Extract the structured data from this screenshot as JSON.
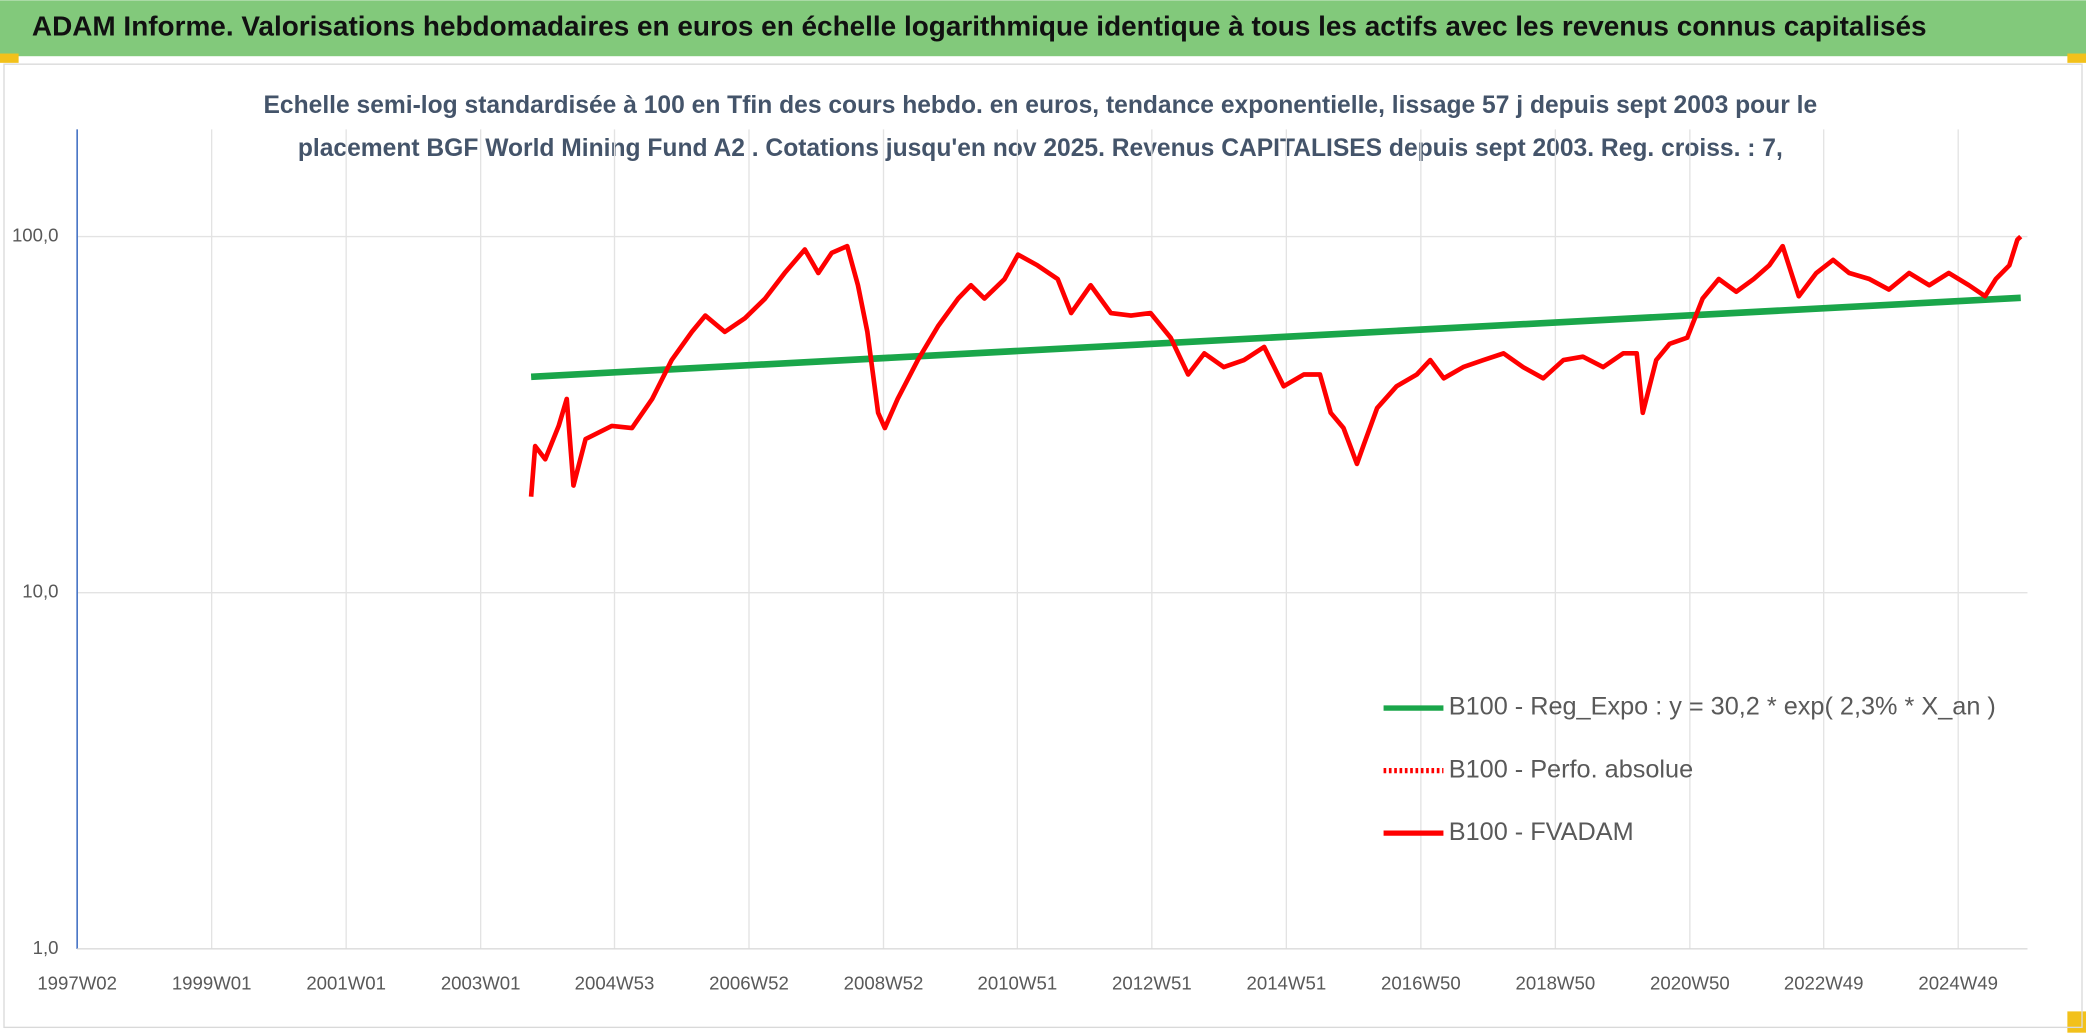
{
  "chart_data": {
    "type": "line",
    "title": "ADAM Informe. Valorisations hebdomadaires en euros en échelle logarithmique identique à tous les actifs avec les revenus connus capitalisés",
    "subtitle": [
      "Echelle semi-log standardisée à 100 en Tfin des cours hebdo. en euros, tendance exponentielle, lissage 57 j depuis sept 2003 pour le",
      "placement BGF World Mining Fund A2 . Cotations jusqu'en nov 2025. Revenus CAPITALISES depuis sept 2003. Reg. croiss. : 7,"
    ],
    "log_y": true,
    "grid": true,
    "ylim": [
      1,
      200
    ],
    "yticks": [
      {
        "value": 1,
        "label": "1,0"
      },
      {
        "value": 10,
        "label": "10,0"
      },
      {
        "value": 100,
        "label": "100,0"
      }
    ],
    "xlim": [
      1997.0,
      2026.0
    ],
    "xticks": [
      {
        "value": 1997.0,
        "label": "1997W02"
      },
      {
        "value": 1999.0,
        "label": "1999W01"
      },
      {
        "value": 2001.0,
        "label": "2001W01"
      },
      {
        "value": 2003.0,
        "label": "2003W01"
      },
      {
        "value": 2004.99,
        "label": "2004W53"
      },
      {
        "value": 2006.99,
        "label": "2006W52"
      },
      {
        "value": 2008.99,
        "label": "2008W52"
      },
      {
        "value": 2010.98,
        "label": "2010W51"
      },
      {
        "value": 2012.98,
        "label": "2012W51"
      },
      {
        "value": 2014.98,
        "label": "2014W51"
      },
      {
        "value": 2016.98,
        "label": "2016W50"
      },
      {
        "value": 2018.98,
        "label": "2018W50"
      },
      {
        "value": 2020.98,
        "label": "2020W50"
      },
      {
        "value": 2022.97,
        "label": "2022W49"
      },
      {
        "value": 2024.97,
        "label": "2024W49"
      }
    ],
    "series": [
      {
        "name": "B100 - Reg_Expo : y = 30,2 * exp( 2,3% *  X_an )",
        "color": "#1aa64a",
        "dash": "solid",
        "x": [
          2003.75,
          2025.9
        ],
        "values": [
          40.4,
          67.3
        ]
      },
      {
        "name": "B100 - Perfo. absolue",
        "color": "#ff0000",
        "dash": "dotted",
        "x": [],
        "values": []
      },
      {
        "name": "B100 - FVADAM",
        "color": "#ff0000",
        "dash": "solid",
        "x": [
          2003.75,
          2003.81,
          2003.96,
          2004.16,
          2004.28,
          2004.38,
          2004.56,
          2004.95,
          2005.25,
          2005.55,
          2005.84,
          2006.14,
          2006.34,
          2006.63,
          2006.93,
          2007.23,
          2007.52,
          2007.82,
          2008.02,
          2008.22,
          2008.45,
          2008.61,
          2008.75,
          2008.91,
          2009.01,
          2009.2,
          2009.5,
          2009.8,
          2010.1,
          2010.29,
          2010.49,
          2010.79,
          2010.99,
          2011.28,
          2011.58,
          2011.78,
          2012.07,
          2012.37,
          2012.67,
          2012.96,
          2013.26,
          2013.52,
          2013.76,
          2014.05,
          2014.35,
          2014.65,
          2014.94,
          2015.24,
          2015.48,
          2015.64,
          2015.83,
          2016.03,
          2016.13,
          2016.33,
          2016.62,
          2016.92,
          2017.12,
          2017.32,
          2017.61,
          2017.91,
          2018.21,
          2018.5,
          2018.8,
          2019.1,
          2019.39,
          2019.69,
          2019.99,
          2020.19,
          2020.28,
          2020.48,
          2020.68,
          2020.94,
          2021.17,
          2021.41,
          2021.67,
          2021.93,
          2022.16,
          2022.36,
          2022.6,
          2022.86,
          2023.11,
          2023.35,
          2023.65,
          2023.94,
          2024.24,
          2024.54,
          2024.83,
          2025.13,
          2025.37,
          2025.53,
          2025.73,
          2025.85,
          2025.9
        ],
        "values": [
          18.6,
          25.8,
          23.7,
          29.4,
          35,
          20,
          27,
          29.4,
          29,
          35,
          45,
          54,
          60,
          54,
          59,
          67,
          79,
          92,
          79,
          90,
          94,
          73,
          54,
          32,
          29,
          35,
          45,
          56,
          67,
          73,
          67,
          76,
          89,
          83,
          76,
          61,
          73,
          61,
          60,
          61,
          52,
          41,
          47,
          43,
          45,
          49,
          38,
          41,
          41,
          32,
          29,
          23,
          26,
          33,
          38,
          41,
          45,
          40,
          43,
          45,
          47,
          43,
          40,
          45,
          46,
          43,
          47,
          47,
          32,
          45,
          50,
          52,
          67,
          76,
          70,
          76,
          83,
          94,
          68,
          79,
          86,
          79,
          76,
          71,
          79,
          73,
          79,
          73,
          68,
          76,
          83,
          98,
          100
        ]
      }
    ]
  }
}
